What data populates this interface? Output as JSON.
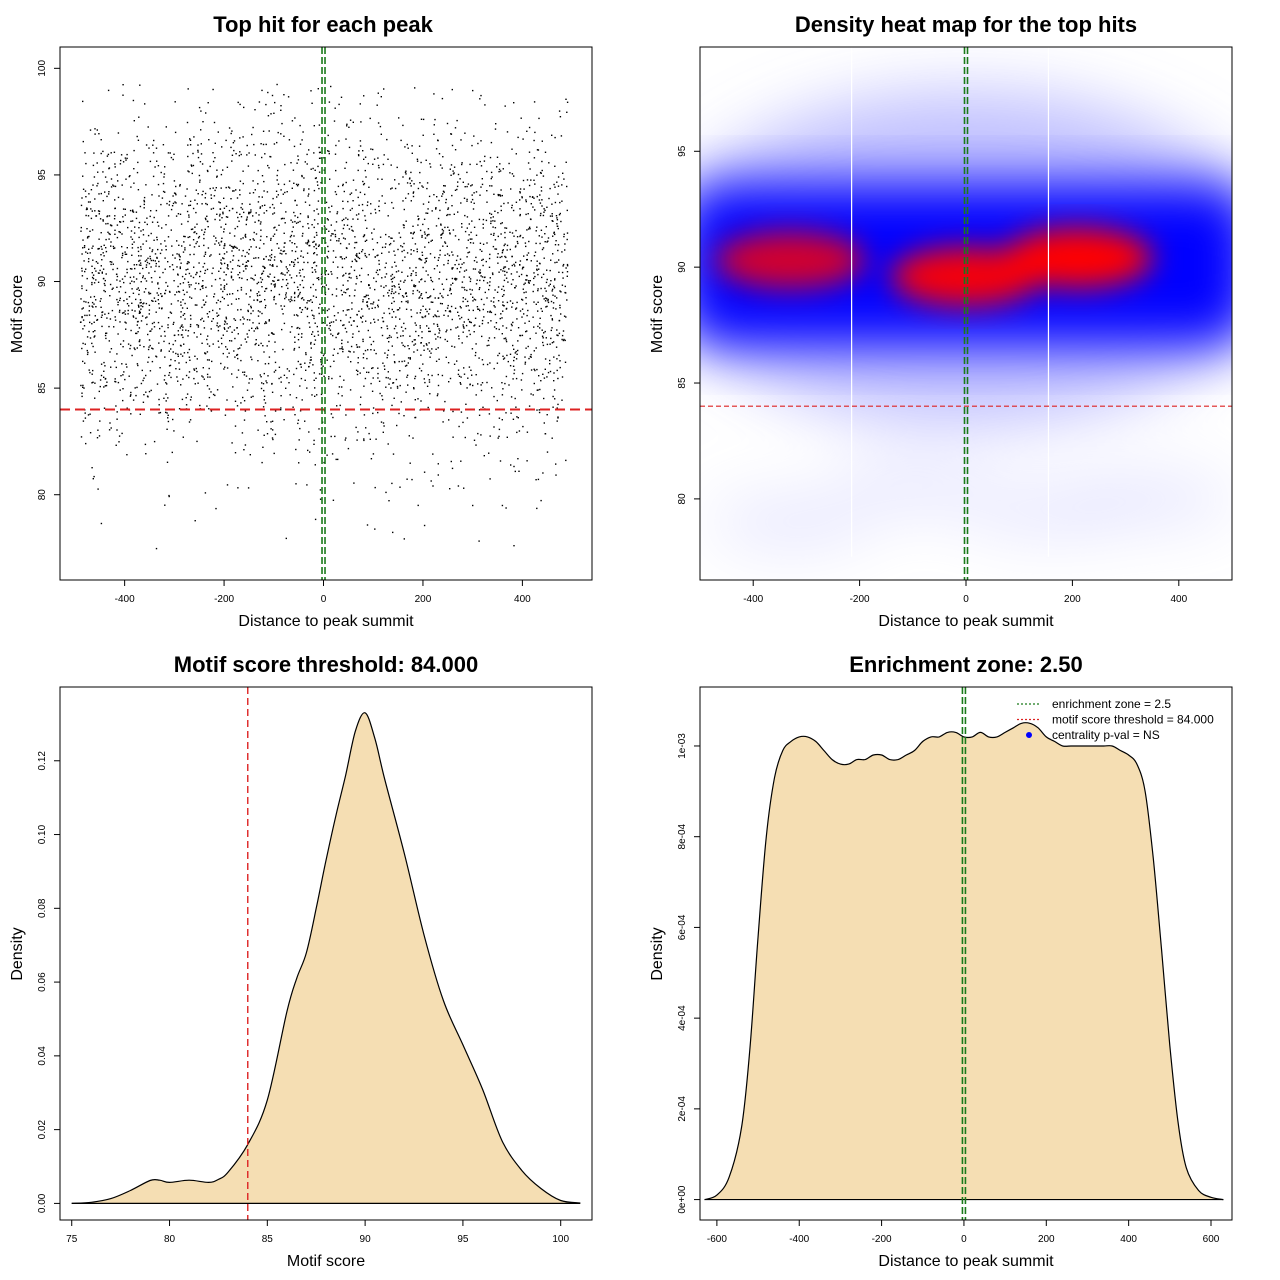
{
  "chart_data": [
    {
      "type": "scatter",
      "title": "Top hit for each peak",
      "xlabel": "Distance to peak summit",
      "ylabel": "Motif score",
      "xlim": [
        -530,
        540
      ],
      "ylim": [
        76,
        101
      ],
      "xticks": [
        -400,
        -200,
        0,
        200,
        400
      ],
      "yticks": [
        80,
        85,
        90,
        95,
        100
      ],
      "points_summary": {
        "n_approx": 4000,
        "x_range": [
          -490,
          490
        ],
        "y_center": 90,
        "y_sd": 4,
        "y_min": 77,
        "y_max": 99.3
      },
      "hlines": [
        {
          "y": 84,
          "color": "#dd2222",
          "style": "dashed"
        }
      ],
      "vlines": [
        {
          "x": 0,
          "color": "#1a7a1a",
          "style": "dashed"
        }
      ],
      "grid": false
    },
    {
      "type": "heatmap",
      "title": "Density heat map for the top hits",
      "xlabel": "Distance to peak summit",
      "ylabel": "Motif score",
      "xlim": [
        -500,
        500
      ],
      "ylim": [
        76.5,
        99.5
      ],
      "xticks": [
        -400,
        -200,
        0,
        200,
        400
      ],
      "yticks": [
        80,
        85,
        90,
        95
      ],
      "colors": [
        "#ffffff",
        "#0000ff",
        "#ff0000"
      ],
      "density_peaks": [
        {
          "x": -330,
          "y": 90.3,
          "intensity": 0.8
        },
        {
          "x": 0,
          "y": 89.6,
          "intensity": 0.95
        },
        {
          "x": 210,
          "y": 90.4,
          "intensity": 1.0
        }
      ],
      "hlines": [
        {
          "y": 84,
          "color": "#dd2222",
          "style": "dashed"
        }
      ],
      "vlines": [
        {
          "x": 0,
          "color": "#1a7a1a",
          "style": "dashed"
        }
      ],
      "grid": false
    },
    {
      "type": "area",
      "title": "Motif score threshold: 84.000",
      "xlabel": "Motif score",
      "ylabel": "Density",
      "xlim": [
        74.4,
        101.6
      ],
      "ylim": [
        -0.0045,
        0.14
      ],
      "xticks": [
        75,
        80,
        85,
        90,
        95,
        100
      ],
      "yticks": [
        0.0,
        0.02,
        0.04,
        0.06,
        0.08,
        0.1,
        0.12
      ],
      "ytick_labels": [
        "0.00",
        "0.02",
        "0.04",
        "0.06",
        "0.08",
        "0.10",
        "0.12"
      ],
      "fill": "#f5deb3",
      "x": [
        75,
        76,
        77,
        78,
        79,
        79.5,
        80,
        81,
        82,
        82.5,
        83,
        84,
        85,
        86,
        86.5,
        87,
        87.5,
        88,
        88.5,
        89,
        89.5,
        90,
        90.5,
        91,
        92,
        93,
        94,
        95,
        96,
        97,
        98,
        99,
        100,
        101
      ],
      "y": [
        0,
        0.0003,
        0.0013,
        0.0035,
        0.0062,
        0.0063,
        0.0057,
        0.0063,
        0.0057,
        0.0065,
        0.0085,
        0.016,
        0.028,
        0.052,
        0.061,
        0.068,
        0.08,
        0.093,
        0.105,
        0.116,
        0.128,
        0.133,
        0.126,
        0.115,
        0.095,
        0.073,
        0.055,
        0.043,
        0.031,
        0.017,
        0.009,
        0.004,
        0.0008,
        0.0001
      ],
      "vlines": [
        {
          "x": 84,
          "color": "#dd2222",
          "style": "dashed"
        }
      ],
      "grid": false
    },
    {
      "type": "area",
      "title": "Enrichment zone: 2.50",
      "xlabel": "Distance to peak summit",
      "ylabel": "Density",
      "xlim": [
        -641,
        651
      ],
      "ylim": [
        -4.5e-05,
        0.00113
      ],
      "xticks": [
        -600,
        -400,
        -200,
        0,
        200,
        400,
        600
      ],
      "yticks": [
        0,
        0.0002,
        0.0004,
        0.0006,
        0.0008,
        0.001
      ],
      "ytick_labels": [
        "0e+00",
        "2e-04",
        "4e-04",
        "6e-04",
        "8e-04",
        "1e-03"
      ],
      "fill": "#f5deb3",
      "x": [
        -630,
        -600,
        -570,
        -540,
        -520,
        -500,
        -480,
        -460,
        -440,
        -420,
        -400,
        -380,
        -360,
        -340,
        -320,
        -300,
        -280,
        -260,
        -240,
        -220,
        -200,
        -180,
        -160,
        -140,
        -120,
        -100,
        -80,
        -60,
        -40,
        -20,
        0,
        20,
        40,
        60,
        80,
        100,
        120,
        140,
        160,
        180,
        200,
        220,
        240,
        260,
        280,
        300,
        320,
        340,
        360,
        380,
        400,
        420,
        440,
        460,
        480,
        500,
        520,
        540,
        570,
        600,
        630
      ],
      "y": [
        0,
        1e-05,
        5e-05,
        0.00016,
        0.00033,
        0.00058,
        0.0008,
        0.00093,
        0.00099,
        0.00101,
        0.00102,
        0.00102,
        0.00101,
        0.00099,
        0.00097,
        0.00096,
        0.00096,
        0.00097,
        0.00097,
        0.00098,
        0.00098,
        0.00097,
        0.00097,
        0.00098,
        0.00099,
        0.00101,
        0.00102,
        0.00102,
        0.00103,
        0.00103,
        0.00102,
        0.00102,
        0.00103,
        0.00102,
        0.00102,
        0.00103,
        0.00104,
        0.00105,
        0.00105,
        0.00104,
        0.00102,
        0.00101,
        0.001,
        0.001,
        0.001,
        0.001,
        0.001,
        0.001,
        0.001,
        0.00099,
        0.00098,
        0.00096,
        0.0009,
        0.00075,
        0.00055,
        0.00034,
        0.00017,
        7e-05,
        2e-05,
        5e-06,
        0
      ],
      "vlines": [
        {
          "x": 0,
          "color": "#1a7a1a",
          "style": "dashed"
        }
      ],
      "legend": {
        "position": "top-right",
        "entries": [
          {
            "label": "enrichment zone = 2.5",
            "color": "#1a7a1a",
            "marker": "dotted-line"
          },
          {
            "label": "motif score threshold = 84.000",
            "color": "#dd2222",
            "marker": "dotted-line"
          },
          {
            "label": "centrality p-val = NS",
            "color": "#0000ff",
            "marker": "dot"
          }
        ]
      },
      "grid": false
    }
  ]
}
